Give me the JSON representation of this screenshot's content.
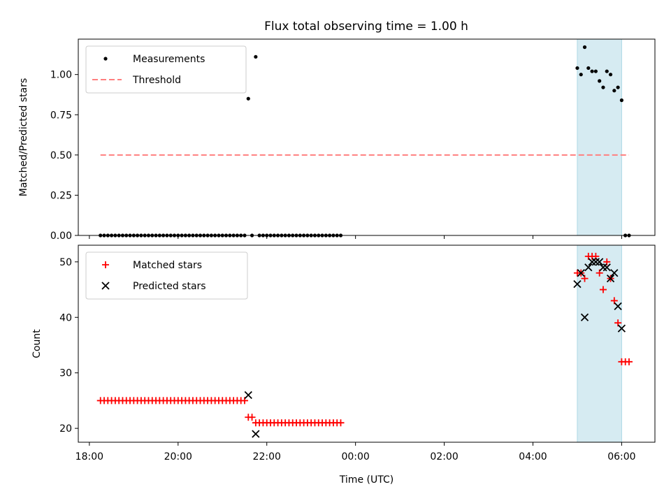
{
  "chart_data": [
    {
      "type": "scatter",
      "title": "Flux total observing time = 1.00 h",
      "xlabel": "",
      "ylabel": "Matched/Predicted stars",
      "xlim": [
        "17:45",
        "06:45"
      ],
      "ylim": [
        0,
        1.22
      ],
      "yticks": [
        "0.00",
        "0.25",
        "0.50",
        "0.75",
        "1.00"
      ],
      "yticks_values": [
        0,
        0.25,
        0.5,
        0.75,
        1.0
      ],
      "legend_position": "top-left",
      "highlight_span": [
        "05:00",
        "06:00"
      ],
      "series": [
        {
          "name": "Measurements",
          "marker": "dot",
          "color": "#000000",
          "points": [
            [
              "18:15",
              0
            ],
            [
              "18:20",
              0
            ],
            [
              "18:25",
              0
            ],
            [
              "18:30",
              0
            ],
            [
              "18:35",
              0
            ],
            [
              "18:40",
              0
            ],
            [
              "18:45",
              0
            ],
            [
              "18:50",
              0
            ],
            [
              "18:55",
              0
            ],
            [
              "19:00",
              0
            ],
            [
              "19:05",
              0
            ],
            [
              "19:10",
              0
            ],
            [
              "19:15",
              0
            ],
            [
              "19:20",
              0
            ],
            [
              "19:25",
              0
            ],
            [
              "19:30",
              0
            ],
            [
              "19:35",
              0
            ],
            [
              "19:40",
              0
            ],
            [
              "19:45",
              0
            ],
            [
              "19:50",
              0
            ],
            [
              "19:55",
              0
            ],
            [
              "20:00",
              0
            ],
            [
              "20:05",
              0
            ],
            [
              "20:10",
              0
            ],
            [
              "20:15",
              0
            ],
            [
              "20:20",
              0
            ],
            [
              "20:25",
              0
            ],
            [
              "20:30",
              0
            ],
            [
              "20:35",
              0
            ],
            [
              "20:40",
              0
            ],
            [
              "20:45",
              0
            ],
            [
              "20:50",
              0
            ],
            [
              "20:55",
              0
            ],
            [
              "21:00",
              0
            ],
            [
              "21:05",
              0
            ],
            [
              "21:10",
              0
            ],
            [
              "21:15",
              0
            ],
            [
              "21:20",
              0
            ],
            [
              "21:25",
              0
            ],
            [
              "21:30",
              0
            ],
            [
              "21:35",
              0.85
            ],
            [
              "21:40",
              0
            ],
            [
              "21:45",
              1.11
            ],
            [
              "21:50",
              0
            ],
            [
              "21:55",
              0
            ],
            [
              "22:00",
              0
            ],
            [
              "22:05",
              0
            ],
            [
              "22:10",
              0
            ],
            [
              "22:15",
              0
            ],
            [
              "22:20",
              0
            ],
            [
              "22:25",
              0
            ],
            [
              "22:30",
              0
            ],
            [
              "22:35",
              0
            ],
            [
              "22:40",
              0
            ],
            [
              "22:45",
              0
            ],
            [
              "22:50",
              0
            ],
            [
              "22:55",
              0
            ],
            [
              "23:00",
              0
            ],
            [
              "23:05",
              0
            ],
            [
              "23:10",
              0
            ],
            [
              "23:15",
              0
            ],
            [
              "23:20",
              0
            ],
            [
              "23:25",
              0
            ],
            [
              "23:30",
              0
            ],
            [
              "23:35",
              0
            ],
            [
              "23:40",
              0
            ],
            [
              "05:00",
              1.04
            ],
            [
              "05:05",
              1.0
            ],
            [
              "05:10",
              1.17
            ],
            [
              "05:15",
              1.04
            ],
            [
              "05:20",
              1.02
            ],
            [
              "05:25",
              1.02
            ],
            [
              "05:30",
              0.96
            ],
            [
              "05:35",
              0.92
            ],
            [
              "05:40",
              1.02
            ],
            [
              "05:45",
              1.0
            ],
            [
              "05:50",
              0.9
            ],
            [
              "05:55",
              0.92
            ],
            [
              "06:00",
              0.84
            ],
            [
              "06:05",
              0
            ],
            [
              "06:10",
              0
            ]
          ]
        },
        {
          "name": "Threshold",
          "marker": "dashed-line",
          "color": "#ff7f7f",
          "points": [
            [
              "18:15",
              0.5
            ],
            [
              "06:10",
              0.5
            ]
          ]
        }
      ]
    },
    {
      "type": "scatter",
      "title": "",
      "xlabel": "Time (UTC)",
      "ylabel": "Count",
      "xlim": [
        "17:45",
        "06:45"
      ],
      "ylim": [
        17.5,
        53
      ],
      "xticks": [
        "18:00",
        "20:00",
        "22:00",
        "00:00",
        "02:00",
        "04:00",
        "06:00"
      ],
      "yticks": [
        "20",
        "30",
        "40",
        "50"
      ],
      "yticks_values": [
        20,
        30,
        40,
        50
      ],
      "legend_position": "top-left",
      "highlight_span": [
        "05:00",
        "06:00"
      ],
      "series": [
        {
          "name": "Matched stars",
          "marker": "plus",
          "color": "#ff0000",
          "points": [
            [
              "18:15",
              25
            ],
            [
              "18:20",
              25
            ],
            [
              "18:25",
              25
            ],
            [
              "18:30",
              25
            ],
            [
              "18:35",
              25
            ],
            [
              "18:40",
              25
            ],
            [
              "18:45",
              25
            ],
            [
              "18:50",
              25
            ],
            [
              "18:55",
              25
            ],
            [
              "19:00",
              25
            ],
            [
              "19:05",
              25
            ],
            [
              "19:10",
              25
            ],
            [
              "19:15",
              25
            ],
            [
              "19:20",
              25
            ],
            [
              "19:25",
              25
            ],
            [
              "19:30",
              25
            ],
            [
              "19:35",
              25
            ],
            [
              "19:40",
              25
            ],
            [
              "19:45",
              25
            ],
            [
              "19:50",
              25
            ],
            [
              "19:55",
              25
            ],
            [
              "20:00",
              25
            ],
            [
              "20:05",
              25
            ],
            [
              "20:10",
              25
            ],
            [
              "20:15",
              25
            ],
            [
              "20:20",
              25
            ],
            [
              "20:25",
              25
            ],
            [
              "20:30",
              25
            ],
            [
              "20:35",
              25
            ],
            [
              "20:40",
              25
            ],
            [
              "20:45",
              25
            ],
            [
              "20:50",
              25
            ],
            [
              "20:55",
              25
            ],
            [
              "21:00",
              25
            ],
            [
              "21:05",
              25
            ],
            [
              "21:10",
              25
            ],
            [
              "21:15",
              25
            ],
            [
              "21:20",
              25
            ],
            [
              "21:25",
              25
            ],
            [
              "21:30",
              25
            ],
            [
              "21:35",
              22
            ],
            [
              "21:40",
              22
            ],
            [
              "21:45",
              21
            ],
            [
              "21:50",
              21
            ],
            [
              "21:55",
              21
            ],
            [
              "22:00",
              21
            ],
            [
              "22:05",
              21
            ],
            [
              "22:10",
              21
            ],
            [
              "22:15",
              21
            ],
            [
              "22:20",
              21
            ],
            [
              "22:25",
              21
            ],
            [
              "22:30",
              21
            ],
            [
              "22:35",
              21
            ],
            [
              "22:40",
              21
            ],
            [
              "22:45",
              21
            ],
            [
              "22:50",
              21
            ],
            [
              "22:55",
              21
            ],
            [
              "23:00",
              21
            ],
            [
              "23:05",
              21
            ],
            [
              "23:10",
              21
            ],
            [
              "23:15",
              21
            ],
            [
              "23:20",
              21
            ],
            [
              "23:25",
              21
            ],
            [
              "23:30",
              21
            ],
            [
              "23:35",
              21
            ],
            [
              "23:40",
              21
            ],
            [
              "05:00",
              48
            ],
            [
              "05:05",
              48
            ],
            [
              "05:10",
              47
            ],
            [
              "05:15",
              51
            ],
            [
              "05:20",
              51
            ],
            [
              "05:25",
              51
            ],
            [
              "05:30",
              48
            ],
            [
              "05:35",
              45
            ],
            [
              "05:40",
              50
            ],
            [
              "05:45",
              47
            ],
            [
              "05:50",
              43
            ],
            [
              "05:55",
              39
            ],
            [
              "06:00",
              32
            ],
            [
              "06:05",
              32
            ],
            [
              "06:10",
              32
            ]
          ]
        },
        {
          "name": "Predicted stars",
          "marker": "x",
          "color": "#000000",
          "points": [
            [
              "21:35",
              26
            ],
            [
              "21:45",
              19
            ],
            [
              "05:00",
              46
            ],
            [
              "05:05",
              48
            ],
            [
              "05:10",
              40
            ],
            [
              "05:15",
              49
            ],
            [
              "05:20",
              50
            ],
            [
              "05:25",
              50
            ],
            [
              "05:30",
              50
            ],
            [
              "05:35",
              49
            ],
            [
              "05:40",
              49
            ],
            [
              "05:45",
              47
            ],
            [
              "05:50",
              48
            ],
            [
              "05:55",
              42
            ],
            [
              "06:00",
              38
            ]
          ]
        }
      ]
    }
  ],
  "colors": {
    "highlight_fill": "#add8e6",
    "measurement": "#000000",
    "threshold": "#ff7f7f",
    "matched": "#ff0000",
    "predicted": "#000000"
  }
}
